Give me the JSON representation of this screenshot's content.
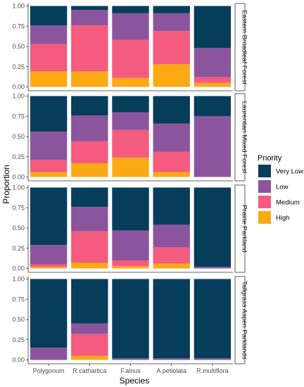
{
  "chart_data": {
    "type": "bar",
    "stacked": true,
    "xlabel": "Species",
    "ylabel": "Proportion",
    "ylim": [
      0,
      1
    ],
    "yticks": [
      "0.00",
      "0.25",
      "0.50",
      "0.75",
      "1.00"
    ],
    "categories": [
      "Polygonum",
      "R.cathartica",
      "F.alnus",
      "A.petiolata",
      "R.multiflora"
    ],
    "legend": {
      "title": "Priority",
      "position": "right",
      "items": [
        {
          "label": "Very Low",
          "color": "#063d5a"
        },
        {
          "label": "Low",
          "color": "#8b559e"
        },
        {
          "label": "Medium",
          "color": "#f45b7e"
        },
        {
          "label": "High",
          "color": "#fbaa13"
        }
      ]
    },
    "panels": [
      {
        "name": "Eastern Broadleaf Forest",
        "series": [
          {
            "name": "High",
            "values": [
              0.19,
              0.19,
              0.11,
              0.28,
              0.05
            ]
          },
          {
            "name": "Medium",
            "values": [
              0.34,
              0.57,
              0.47,
              0.41,
              0.07
            ]
          },
          {
            "name": "Low",
            "values": [
              0.23,
              0.19,
              0.33,
              0.22,
              0.36
            ]
          },
          {
            "name": "Very Low",
            "values": [
              0.24,
              0.05,
              0.09,
              0.09,
              0.52
            ]
          }
        ]
      },
      {
        "name": "Laurentian Mixed Forest",
        "series": [
          {
            "name": "High",
            "values": [
              0.06,
              0.17,
              0.24,
              0.06,
              0.0
            ]
          },
          {
            "name": "Medium",
            "values": [
              0.15,
              0.27,
              0.34,
              0.25,
              0.0
            ]
          },
          {
            "name": "Low",
            "values": [
              0.35,
              0.32,
              0.22,
              0.35,
              0.75
            ]
          },
          {
            "name": "Very Low",
            "values": [
              0.44,
              0.24,
              0.2,
              0.34,
              0.25
            ]
          }
        ]
      },
      {
        "name": "Prairie Parkland",
        "series": [
          {
            "name": "High",
            "values": [
              0.02,
              0.07,
              0.03,
              0.06,
              0.0
            ]
          },
          {
            "name": "Medium",
            "values": [
              0.03,
              0.39,
              0.07,
              0.2,
              0.0
            ]
          },
          {
            "name": "Low",
            "values": [
              0.24,
              0.3,
              0.37,
              0.28,
              0.02
            ]
          },
          {
            "name": "Very Low",
            "values": [
              0.71,
              0.24,
              0.53,
              0.46,
              0.98
            ]
          }
        ]
      },
      {
        "name": "Tallgrass Aspen Parklands",
        "series": [
          {
            "name": "High",
            "values": [
              0.0,
              0.05,
              0.0,
              0.0,
              0.0
            ]
          },
          {
            "name": "Medium",
            "values": [
              0.0,
              0.27,
              0.0,
              0.0,
              0.0
            ]
          },
          {
            "name": "Low",
            "values": [
              0.15,
              0.13,
              0.02,
              0.02,
              0.02
            ]
          },
          {
            "name": "Very Low",
            "values": [
              0.85,
              0.55,
              0.98,
              0.98,
              0.98
            ]
          }
        ]
      }
    ]
  }
}
